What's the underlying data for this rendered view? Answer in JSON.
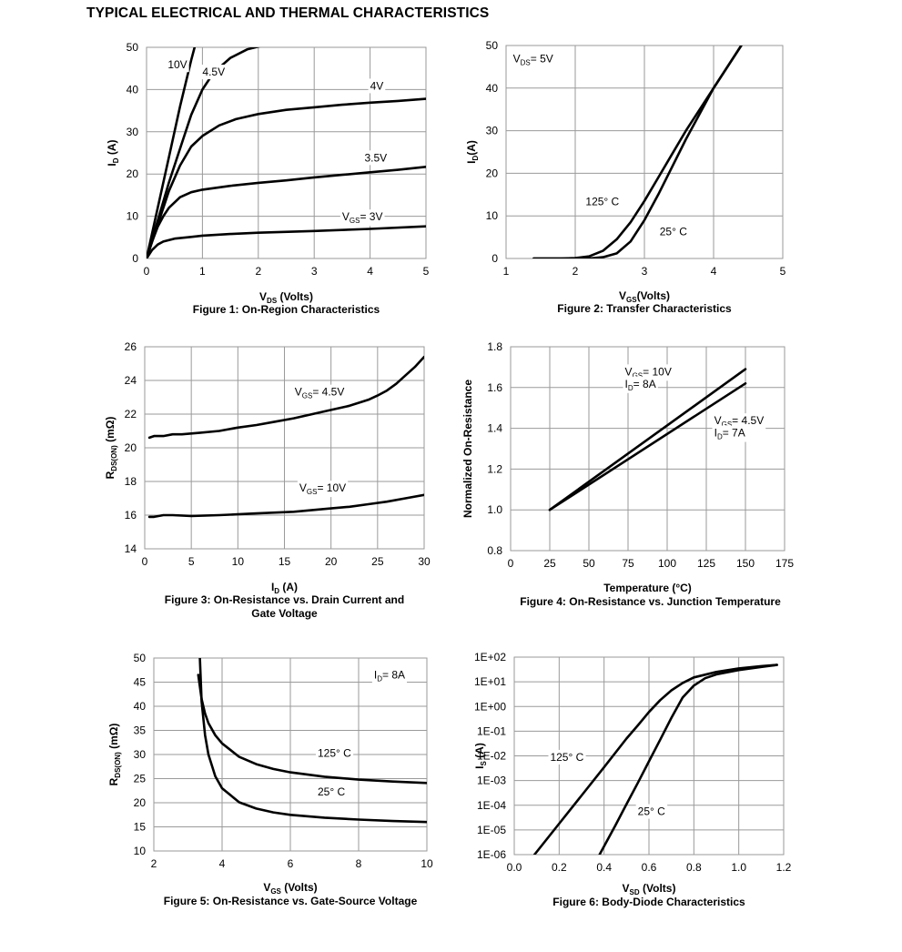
{
  "page": {
    "title": "TYPICAL ELECTRICAL AND THERMAL CHARACTERISTICS"
  },
  "chart_data": [
    {
      "id": "fig1",
      "type": "line",
      "caption": [
        "Figure 1: On-Region Characteristics"
      ],
      "xlabel": {
        "main": "V",
        "sub": "DS",
        "tail": " (Volts)"
      },
      "ylabel": {
        "main": "I",
        "sub": "D",
        "tail": " (A)"
      },
      "xlim": [
        0,
        5
      ],
      "ylim": [
        0,
        50
      ],
      "xticks": [
        0,
        1,
        2,
        3,
        4,
        5
      ],
      "yticks": [
        0,
        10,
        20,
        30,
        40,
        50
      ],
      "grid": true,
      "series": [
        {
          "name": "10V",
          "x": [
            0,
            0.2,
            0.4,
            0.6,
            0.8,
            0.92
          ],
          "y": [
            0,
            12,
            24,
            36,
            47,
            53
          ]
        },
        {
          "name": "4.5V",
          "x": [
            0,
            0.2,
            0.4,
            0.6,
            0.8,
            1.0,
            1.2,
            1.5,
            1.8,
            2.1
          ],
          "y": [
            0,
            9,
            18,
            26,
            34,
            40,
            44,
            47.5,
            49.5,
            50.5
          ]
        },
        {
          "name": "4V",
          "x": [
            0,
            0.2,
            0.4,
            0.6,
            0.8,
            1.0,
            1.3,
            1.6,
            2.0,
            2.5,
            3.0,
            3.5,
            4.0,
            4.5,
            5.0
          ],
          "y": [
            0,
            8,
            16,
            22,
            26.5,
            29,
            31.5,
            33,
            34.2,
            35.2,
            35.8,
            36.4,
            36.9,
            37.3,
            37.8
          ]
        },
        {
          "name": "3.5V",
          "x": [
            0,
            0.1,
            0.2,
            0.3,
            0.4,
            0.6,
            0.8,
            1.0,
            1.5,
            2.0,
            2.5,
            3.0,
            3.5,
            4.0,
            4.5,
            5.0
          ],
          "y": [
            0,
            4,
            7.5,
            10,
            12,
            14.5,
            15.7,
            16.3,
            17.2,
            17.9,
            18.5,
            19.2,
            19.8,
            20.4,
            21,
            21.7
          ]
        },
        {
          "name": "V_GS= 3V",
          "x": [
            0,
            0.1,
            0.2,
            0.3,
            0.5,
            0.8,
            1.0,
            1.5,
            2.0,
            3.0,
            4.0,
            5.0
          ],
          "y": [
            0,
            2,
            3.3,
            4,
            4.7,
            5.1,
            5.4,
            5.8,
            6.1,
            6.5,
            7,
            7.6
          ]
        }
      ],
      "annotations": [
        {
          "text": "10V",
          "x": 0.38,
          "y": 45
        },
        {
          "text": "4.5V",
          "x": 1.0,
          "y": 43.3
        },
        {
          "text": "4V",
          "x": 4.0,
          "y": 40
        },
        {
          "text": "3.5V",
          "x": 3.9,
          "y": 23
        },
        {
          "text": "3V",
          "x": 3.5,
          "y": 9,
          "prefix": "V",
          "sub": "GS",
          "suffix": "= "
        }
      ]
    },
    {
      "id": "fig2",
      "type": "line",
      "caption": [
        "Figure 2: Transfer Characteristics"
      ],
      "xlabel": {
        "main": "V",
        "sub": "GS",
        "tail": "(Volts)"
      },
      "ylabel": {
        "main": "I",
        "sub": "D",
        "tail": "(A)"
      },
      "xlim": [
        1,
        5
      ],
      "ylim": [
        0,
        50
      ],
      "xticks": [
        1,
        2,
        3,
        4,
        5
      ],
      "yticks": [
        0,
        10,
        20,
        30,
        40,
        50
      ],
      "grid": true,
      "series": [
        {
          "name": "125° C",
          "x": [
            1.4,
            1.8,
            2.0,
            2.2,
            2.4,
            2.6,
            2.8,
            3.0,
            3.2,
            3.4,
            3.6,
            3.8,
            4.0,
            4.2,
            4.4
          ],
          "y": [
            0,
            0,
            0.1,
            0.5,
            1.8,
            4.5,
            8.5,
            13.5,
            19,
            24.5,
            30,
            35,
            40,
            45,
            50
          ]
        },
        {
          "name": "25° C",
          "x": [
            1.4,
            2.2,
            2.4,
            2.6,
            2.8,
            3.0,
            3.2,
            3.4,
            3.6,
            3.8,
            4.0,
            4.2,
            4.4
          ],
          "y": [
            0,
            0,
            0.3,
            1.2,
            4,
            9,
            15,
            21.5,
            28,
            34,
            40,
            45,
            50
          ]
        }
      ],
      "annotations": [
        {
          "text": "5V",
          "x": 1.1,
          "y": 46,
          "prefix": "V",
          "sub": "DS",
          "suffix": "= "
        },
        {
          "text": "125° C",
          "x": 2.15,
          "y": 12.5
        },
        {
          "text": "25° C",
          "x": 3.22,
          "y": 5.5
        }
      ]
    },
    {
      "id": "fig3",
      "type": "line",
      "caption": [
        "Figure 3: On-Resistance vs. Drain Current and",
        "Gate Voltage"
      ],
      "xlabel": {
        "main": "I",
        "sub": "D",
        "tail": " (A)"
      },
      "ylabel": {
        "main": "R",
        "sub": "DS(ON)",
        "tail": " (mΩ)"
      },
      "xlim": [
        0,
        30
      ],
      "ylim": [
        14,
        26
      ],
      "xticks": [
        0,
        5,
        10,
        15,
        20,
        25,
        30
      ],
      "yticks": [
        14,
        16,
        18,
        20,
        22,
        24,
        26
      ],
      "grid": true,
      "series": [
        {
          "name": "V_GS= 4.5V",
          "x": [
            0.5,
            1,
            2,
            3,
            4,
            6,
            8,
            10,
            12,
            14,
            16,
            18,
            20,
            22,
            24,
            25,
            26,
            27,
            28,
            29,
            30
          ],
          "y": [
            20.6,
            20.7,
            20.7,
            20.8,
            20.8,
            20.9,
            21.0,
            21.2,
            21.35,
            21.55,
            21.75,
            22.0,
            22.25,
            22.5,
            22.85,
            23.1,
            23.4,
            23.8,
            24.3,
            24.8,
            25.4
          ]
        },
        {
          "name": "V_GS= 10V",
          "x": [
            0.5,
            1,
            2,
            3,
            5,
            8,
            10,
            12,
            14,
            16,
            18,
            20,
            22,
            24,
            26,
            28,
            30
          ],
          "y": [
            15.9,
            15.9,
            16.0,
            16.0,
            15.95,
            16.0,
            16.05,
            16.1,
            16.15,
            16.2,
            16.3,
            16.4,
            16.5,
            16.65,
            16.8,
            17.0,
            17.2
          ]
        }
      ],
      "annotations": [
        {
          "text": "4.5V",
          "x": 16.1,
          "y": 23.1,
          "prefix": "V",
          "sub": "GS",
          "suffix": "= "
        },
        {
          "text": "10V",
          "x": 16.6,
          "y": 17.4,
          "prefix": "V",
          "sub": "GS",
          "suffix": "= "
        }
      ]
    },
    {
      "id": "fig4",
      "type": "line",
      "caption": [
        "Figure 4: On-Resistance vs. Junction Temperature"
      ],
      "xlabel": {
        "main": "Temperature (°C)",
        "sub": "",
        "tail": ""
      },
      "ylabel": {
        "main": "Normalized On-Resistance",
        "sub": "",
        "tail": ""
      },
      "xlim": [
        0,
        175
      ],
      "ylim": [
        0.8,
        1.8
      ],
      "xticks": [
        0,
        25,
        50,
        75,
        100,
        125,
        150,
        175
      ],
      "yticks": [
        0.8,
        1.0,
        1.2,
        1.4,
        1.6,
        1.8
      ],
      "ytick_labels": [
        "0.8",
        "1.0",
        "1.2",
        "1.4",
        "1.6",
        "1.8"
      ],
      "grid": true,
      "series": [
        {
          "name": "V_GS= 10V, I_D= 8A",
          "x": [
            25,
            150
          ],
          "y": [
            1.0,
            1.69
          ]
        },
        {
          "name": "V_GS= 4.5V, I_D= 7A",
          "x": [
            25,
            150
          ],
          "y": [
            1.0,
            1.62
          ]
        }
      ],
      "annotations": [
        {
          "text": "10V",
          "x": 73,
          "y": 1.66,
          "prefix": "V",
          "sub": "GS",
          "suffix": "= "
        },
        {
          "text": "8A",
          "x": 73,
          "y": 1.6,
          "prefix": "I",
          "sub": "D",
          "suffix": "= "
        },
        {
          "text": "4.5V",
          "x": 130,
          "y": 1.42,
          "prefix": "V",
          "sub": "GS",
          "suffix": "= "
        },
        {
          "text": "7A",
          "x": 130,
          "y": 1.36,
          "prefix": "I",
          "sub": "D",
          "suffix": "= "
        }
      ]
    },
    {
      "id": "fig5",
      "type": "line",
      "caption": [
        "Figure 5: On-Resistance vs. Gate-Source Voltage"
      ],
      "xlabel": {
        "main": "V",
        "sub": "GS",
        "tail": " (Volts)"
      },
      "ylabel": {
        "main": "R",
        "sub": "DS(ON)",
        "tail": " (mΩ)"
      },
      "xlim": [
        2,
        10
      ],
      "ylim": [
        10,
        50
      ],
      "xticks": [
        2,
        4,
        6,
        8,
        10
      ],
      "yticks": [
        10,
        15,
        20,
        25,
        30,
        35,
        40,
        45,
        50
      ],
      "grid": true,
      "series": [
        {
          "name": "125° C",
          "x": [
            3.3,
            3.4,
            3.5,
            3.6,
            3.8,
            4.0,
            4.5,
            5.0,
            5.5,
            6.0,
            7.0,
            8.0,
            9.0,
            10.0
          ],
          "y": [
            46.5,
            41.5,
            38.5,
            36.5,
            34,
            32.3,
            29.5,
            28,
            27,
            26.3,
            25.4,
            24.8,
            24.4,
            24.1
          ]
        },
        {
          "name": "25° C",
          "x": [
            3.35,
            3.4,
            3.5,
            3.6,
            3.8,
            4.0,
            4.5,
            5.0,
            5.5,
            6.0,
            7.0,
            8.0,
            9.0,
            10.0
          ],
          "y": [
            50,
            41,
            34,
            30,
            25.5,
            23,
            20.1,
            18.8,
            18,
            17.5,
            16.9,
            16.5,
            16.2,
            16
          ]
        }
      ],
      "annotations": [
        {
          "text": "125° C",
          "x": 6.8,
          "y": 29.5
        },
        {
          "text": "25° C",
          "x": 6.8,
          "y": 21.5
        },
        {
          "text": "8A",
          "x": 8.45,
          "y": 45.8,
          "prefix": "I",
          "sub": "D",
          "suffix": "= "
        }
      ]
    },
    {
      "id": "fig6",
      "type": "line",
      "yscale": "log",
      "caption": [
        "Figure 6: Body-Diode Characteristics"
      ],
      "xlabel": {
        "main": "V",
        "sub": "SD",
        "tail": " (Volts)"
      },
      "ylabel": {
        "main": "I",
        "sub": "S",
        "tail": " (A)"
      },
      "xlim": [
        0.0,
        1.2
      ],
      "ylim": [
        1e-06,
        100
      ],
      "xticks": [
        0.0,
        0.2,
        0.4,
        0.6,
        0.8,
        1.0,
        1.2
      ],
      "xtick_labels": [
        "0.0",
        "0.2",
        "0.4",
        "0.6",
        "0.8",
        "1.0",
        "1.2"
      ],
      "yticks": [
        1e-06,
        1e-05,
        0.0001,
        0.001,
        0.01,
        0.1,
        1,
        10,
        100
      ],
      "ytick_labels": [
        "1E-06",
        "1E-05",
        "1E-04",
        "1E-03",
        "1E-02",
        "1E-01",
        "1E+00",
        "1E+01",
        "1E+02"
      ],
      "grid": true,
      "series": [
        {
          "name": "125° C",
          "x": [
            0.09,
            0.2,
            0.3,
            0.4,
            0.5,
            0.55,
            0.6,
            0.65,
            0.7,
            0.75,
            0.8,
            0.9,
            1.0,
            1.1,
            1.17
          ],
          "y": [
            1e-06,
            1.8e-05,
            0.00025,
            0.0035,
            0.05,
            0.17,
            0.6,
            1.8,
            4.5,
            9,
            15,
            25,
            35,
            43,
            48
          ]
        },
        {
          "name": "25° C",
          "x": [
            0.38,
            0.45,
            0.5,
            0.55,
            0.6,
            0.65,
            0.7,
            0.75,
            0.8,
            0.85,
            0.9,
            1.0,
            1.1,
            1.17
          ],
          "y": [
            1e-06,
            1.5e-05,
            0.00011,
            0.0008,
            0.006,
            0.045,
            0.35,
            2.3,
            7,
            14,
            20,
            30,
            40,
            48
          ]
        }
      ],
      "annotations": [
        {
          "text": "125° C",
          "x": 0.16,
          "y": 0.0063
        },
        {
          "text": "25° C",
          "x": 0.55,
          "y": 4e-05
        }
      ]
    }
  ]
}
